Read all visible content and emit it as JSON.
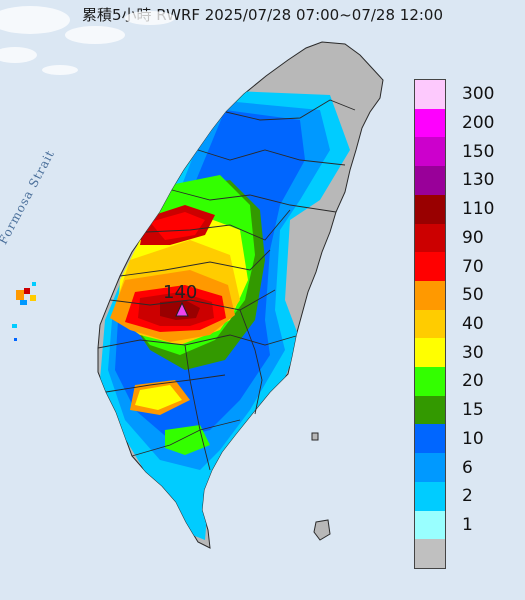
{
  "title": "累積5小時 RWRF 2025/07/28 07:00~07/28 12:00",
  "sea_label": "Formosa Strait",
  "peak_value": "140",
  "marker_icon": "peak-triangle-icon",
  "colors": {
    "sea": "#dbe7f3",
    "land": "#b8b8b8",
    "border": "#2a2a2a"
  },
  "legend": [
    {
      "label": "300",
      "color": "#fdc9fd"
    },
    {
      "label": "200",
      "color": "#fe00fe"
    },
    {
      "label": "150",
      "color": "#cc00cc"
    },
    {
      "label": "130",
      "color": "#990099"
    },
    {
      "label": "110",
      "color": "#990000"
    },
    {
      "label": "90",
      "color": "#cc0000"
    },
    {
      "label": "70",
      "color": "#ff0000"
    },
    {
      "label": "50",
      "color": "#ff9900"
    },
    {
      "label": "40",
      "color": "#ffcc00"
    },
    {
      "label": "30",
      "color": "#ffff00"
    },
    {
      "label": "20",
      "color": "#33ff00"
    },
    {
      "label": "15",
      "color": "#339900"
    },
    {
      "label": "10",
      "color": "#0066ff"
    },
    {
      "label": "6",
      "color": "#0099ff"
    },
    {
      "label": "2",
      "color": "#00ccff"
    },
    {
      "label": "1",
      "color": "#99ffff"
    },
    {
      "label": "",
      "color": "#c0c0c0"
    }
  ]
}
